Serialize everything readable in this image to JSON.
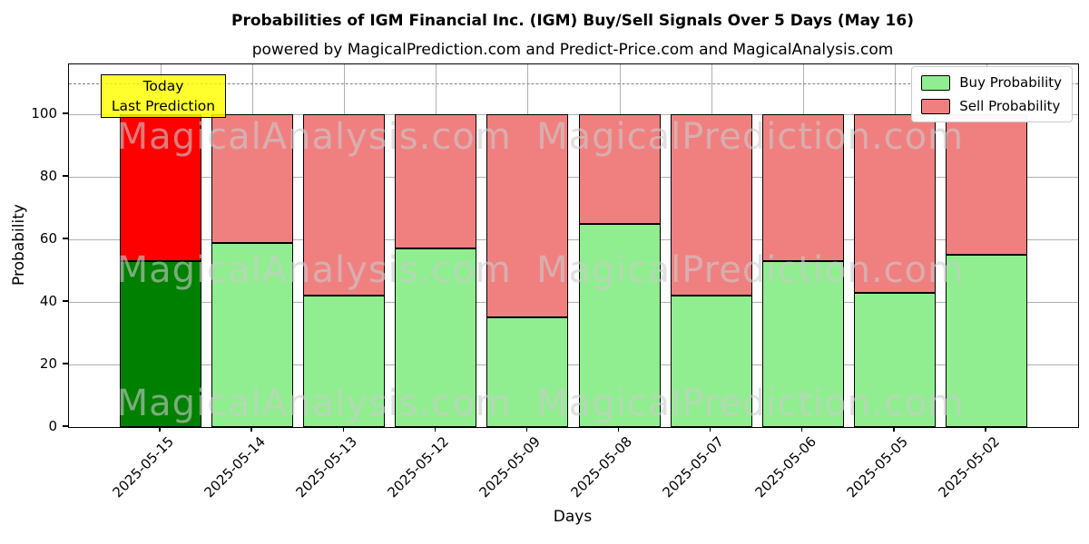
{
  "chart_data": {
    "type": "bar",
    "stacked": true,
    "title": "Probabilities of IGM Financial Inc. (IGM) Buy/Sell Signals Over 5 Days (May 16)",
    "subtitle": "powered by MagicalPrediction.com and Predict-Price.com and MagicalAnalysis.com",
    "xlabel": "Days",
    "ylabel": "Probability",
    "categories": [
      "2025-05-15",
      "2025-05-14",
      "2025-05-13",
      "2025-05-12",
      "2025-05-09",
      "2025-05-08",
      "2025-05-07",
      "2025-05-06",
      "2025-05-05",
      "2025-05-02"
    ],
    "series": [
      {
        "name": "Buy Probability",
        "values": [
          53,
          59,
          42,
          57,
          35,
          65,
          42,
          53,
          43,
          55
        ],
        "color": "#90ee90",
        "highlight_color": "#008000"
      },
      {
        "name": "Sell Probability",
        "values": [
          47,
          41,
          58,
          43,
          65,
          35,
          58,
          47,
          57,
          45
        ],
        "color": "#f08080",
        "highlight_color": "#ff0000"
      }
    ],
    "highlight_index": 0,
    "bar_edge_color": "#000000",
    "yticks": [
      0,
      20,
      40,
      60,
      80,
      100
    ],
    "ylim": [
      0,
      116
    ],
    "reference_line_y": 110,
    "grid": true,
    "legend_position": "upper right",
    "annotation": {
      "line1": "Today",
      "line2": "Last Prediction",
      "bg_color": "#ffff00"
    },
    "watermarks": {
      "left_text": "MagicalAnalysis.com",
      "right_text": "MagicalPrediction.com",
      "rows": 3
    }
  }
}
